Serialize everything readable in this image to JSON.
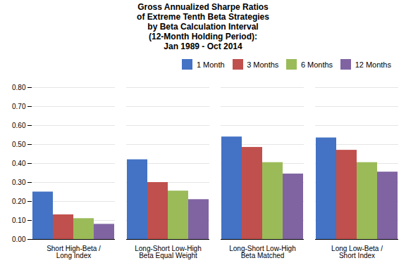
{
  "chart_data": {
    "type": "bar",
    "title": "Gross Annualized Sharpe Ratios\nof Extreme Tenth Beta Strategies\nby Beta Calculation Interval\n(12-Month Holding Period):\nJan 1989 - Oct 2014",
    "categories": [
      "Short High-Beta /\nLong Index",
      "Long-Short Low-High\nBeta Equal Weight",
      "Long-Short Low-High\nBeta Matched",
      "Long Low-Beta /\nShort Index"
    ],
    "series": [
      {
        "name": "1 Month",
        "color": "#4472C4",
        "values": [
          0.25,
          0.42,
          0.54,
          0.535
        ]
      },
      {
        "name": "3 Months",
        "color": "#C0504D",
        "values": [
          0.13,
          0.3,
          0.485,
          0.47
        ]
      },
      {
        "name": "6 Months",
        "color": "#9BBB59",
        "values": [
          0.11,
          0.255,
          0.405,
          0.405
        ]
      },
      {
        "name": "12 Months",
        "color": "#8064A2",
        "values": [
          0.08,
          0.21,
          0.345,
          0.355
        ]
      }
    ],
    "ylim": [
      0.0,
      0.8
    ],
    "yticks": [
      {
        "value": 0.0,
        "label": "0.00"
      },
      {
        "value": 0.1,
        "label": "0.10"
      },
      {
        "value": 0.2,
        "label": "0.20"
      },
      {
        "value": 0.3,
        "label": "0.30"
      },
      {
        "value": 0.4,
        "label": "0.40"
      },
      {
        "value": 0.5,
        "label": "0.50"
      },
      {
        "value": 0.6,
        "label": "0.60"
      },
      {
        "value": 0.7,
        "label": "0.70"
      },
      {
        "value": 0.8,
        "label": "0.80"
      }
    ],
    "grid": true,
    "legend": "upper right"
  }
}
